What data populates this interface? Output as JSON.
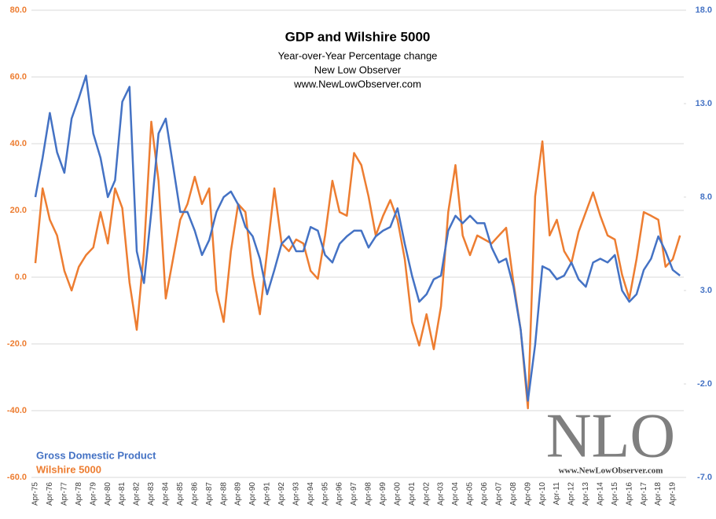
{
  "chart_data": {
    "type": "line",
    "title": "GDP and Wilshire  5000",
    "subtitle": [
      "Year-over-Year Percentage change",
      "New Low Observer",
      "www.NewLowObserver.com"
    ],
    "watermark": "NLO",
    "watermark_url": "www.NewLowObserver.com",
    "legend": "lower left",
    "grid": true,
    "categories": [
      "Apr-75",
      null,
      "Apr-76",
      null,
      "Apr-77",
      null,
      "Apr-78",
      null,
      "Apr-79",
      null,
      "Apr-80",
      null,
      "Apr-81",
      null,
      "Apr-82",
      null,
      "Apr-83",
      null,
      "Apr-84",
      null,
      "Apr-85",
      null,
      "Apr-86",
      null,
      "Apr-87",
      null,
      "Apr-88",
      null,
      "Apr-89",
      null,
      "Apr-90",
      null,
      "Apr-91",
      null,
      "Apr-92",
      null,
      "Apr-93",
      null,
      "Apr-94",
      null,
      "Apr-95",
      null,
      "Apr-96",
      null,
      "Apr-97",
      null,
      "Apr-98",
      null,
      "Apr-99",
      null,
      "Apr-00",
      null,
      "Apr-01",
      null,
      "Apr-02",
      null,
      "Apr-03",
      null,
      "Apr-04",
      null,
      "Apr-05",
      null,
      "Apr-06",
      null,
      "Apr-07",
      null,
      "Apr-08",
      null,
      "Apr-09",
      null,
      "Apr-10",
      null,
      "Apr-11",
      null,
      "Apr-12",
      null,
      "Apr-13",
      null,
      "Apr-14",
      null,
      "Apr-15",
      null,
      "Apr-16",
      null,
      "Apr-17",
      null,
      "Apr-18",
      null,
      "Apr-19",
      null
    ],
    "ylim": [
      -60,
      80
    ],
    "yticks": [
      {
        "value": -60,
        "label": "-60.0"
      },
      {
        "value": -40,
        "label": "-40.0"
      },
      {
        "value": -20,
        "label": "-20.0"
      },
      {
        "value": 0,
        "label": "0.0"
      },
      {
        "value": 20,
        "label": "20.0"
      },
      {
        "value": 40,
        "label": "40.0"
      },
      {
        "value": 60,
        "label": "60.0"
      },
      {
        "value": 80,
        "label": "80.0"
      }
    ],
    "y2lim": [
      -7,
      18
    ],
    "y2ticks": [
      {
        "value": -7,
        "label": "-7.0"
      },
      {
        "value": -2,
        "label": "-2.0"
      },
      {
        "value": 3,
        "label": "3.0"
      },
      {
        "value": 8,
        "label": "8.0"
      },
      {
        "value": 13,
        "label": "13.0"
      },
      {
        "value": 18,
        "label": "18.0"
      }
    ],
    "series": [
      {
        "name": "Gross Domestic Product",
        "color": "#4472c4",
        "axis": "y2",
        "values": [
          8.0,
          10.1,
          12.5,
          10.4,
          9.3,
          12.2,
          13.3,
          14.5,
          11.4,
          10.1,
          8.0,
          8.9,
          13.1,
          13.9,
          5.1,
          3.4,
          7.2,
          11.4,
          12.2,
          9.7,
          7.2,
          7.2,
          6.2,
          4.9,
          5.7,
          7.2,
          8.0,
          8.3,
          7.6,
          6.4,
          5.9,
          4.7,
          2.8,
          4.1,
          5.5,
          5.9,
          5.1,
          5.1,
          6.4,
          6.2,
          4.9,
          4.5,
          5.5,
          5.9,
          6.2,
          6.2,
          5.3,
          5.9,
          6.2,
          6.4,
          7.4,
          5.5,
          3.8,
          2.4,
          2.8,
          3.6,
          3.8,
          6.2,
          7.0,
          6.6,
          7.0,
          6.6,
          6.6,
          5.3,
          4.5,
          4.7,
          3.2,
          0.9,
          -2.9,
          0.1,
          4.3,
          4.1,
          3.6,
          3.8,
          4.5,
          3.6,
          3.2,
          4.5,
          4.7,
          4.5,
          4.9,
          3.0,
          2.4,
          2.8,
          4.1,
          4.7,
          5.9,
          5.1,
          4.1,
          3.8
        ]
      },
      {
        "name": "Wilshire 5000",
        "color": "#ed7d31",
        "axis": "y",
        "values": [
          4.2,
          26.6,
          17.2,
          12.5,
          1.9,
          -4.0,
          3.1,
          6.6,
          8.9,
          19.5,
          10.1,
          26.6,
          20.7,
          -1.6,
          -15.8,
          7.8,
          46.6,
          28.9,
          -6.4,
          5.4,
          17.2,
          21.9,
          30.1,
          21.9,
          26.6,
          -4.0,
          -13.4,
          7.8,
          21.9,
          19.5,
          0.7,
          -11.1,
          7.8,
          26.6,
          10.1,
          7.8,
          11.3,
          10.1,
          1.9,
          -0.5,
          12.5,
          28.9,
          19.5,
          18.4,
          37.2,
          33.6,
          24.2,
          12.5,
          18.4,
          23.1,
          17.2,
          5.4,
          -13.4,
          -20.5,
          -11.1,
          -21.6,
          -8.7,
          19.5,
          33.6,
          12.5,
          6.6,
          12.5,
          11.3,
          10.1,
          12.5,
          14.8,
          -1.6,
          -15.8,
          -39.3,
          24.2,
          40.7,
          12.5,
          17.2,
          7.8,
          4.2,
          13.6,
          19.5,
          25.4,
          18.4,
          12.5,
          11.3,
          0.7,
          -6.4,
          5.4,
          19.5,
          18.4,
          17.2,
          3.1,
          5.4,
          12.5
        ]
      }
    ]
  }
}
